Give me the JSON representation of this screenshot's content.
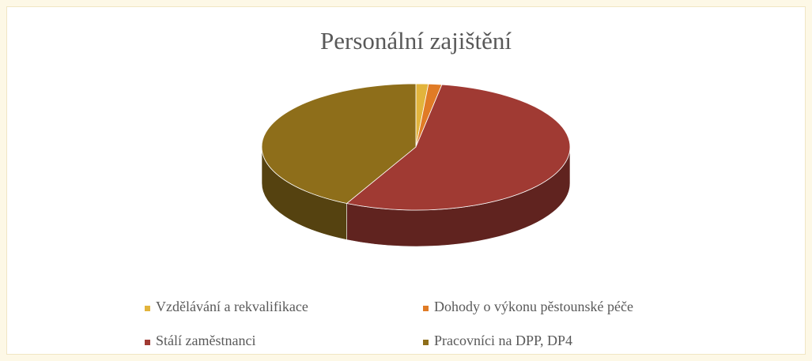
{
  "chart_data": {
    "type": "pie",
    "title": "Personální zajištění",
    "categories": [
      "Vzdělávání a rekvalifikace",
      "Dohody o výkonu pěstounské péče",
      "Stálí zaměstnanci",
      "Pracovníci na DPP, DP4"
    ],
    "values": [
      1.3,
      1.4,
      54.7,
      42.6
    ],
    "colors": [
      "#e2b43c",
      "#e07b26",
      "#a03a33",
      "#8e6e1a"
    ],
    "legend": "bottom"
  }
}
